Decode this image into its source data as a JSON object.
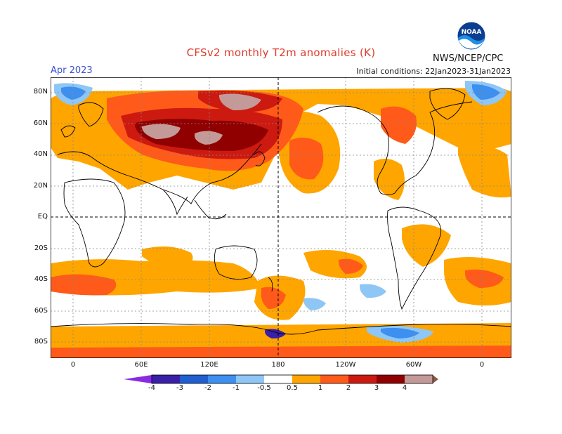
{
  "header": {
    "title": "CFSv2 monthly T2m anomalies (K)",
    "month": "Apr 2023",
    "initial_conditions": "Initial conditions: 22Jan2023-31Jan2023",
    "agency": "NWS/NCEP/CPC",
    "logo_text": "NOAA"
  },
  "lat_labels": [
    "80N",
    "60N",
    "40N",
    "20N",
    "EQ",
    "20S",
    "40S",
    "60S",
    "80S"
  ],
  "lon_labels": [
    "0",
    "60E",
    "120E",
    "180",
    "120W",
    "60W",
    "0"
  ],
  "colorbar": {
    "labels": [
      "-4",
      "-3",
      "-2",
      "-1",
      "-0.5",
      "0.5",
      "1",
      "2",
      "3",
      "4"
    ],
    "colors": {
      "below_-4": "#8a2be2",
      "-4_-3": "#3a1fa8",
      "-3_-2": "#1f5fd1",
      "-2_-1": "#3d8ff0",
      "-1_-0.5": "#8ec6f5",
      "-0.5_0.5": "#ffffff",
      "0.5_1": "#ffa500",
      "1_2": "#ff5a1a",
      "2_3": "#cc1a10",
      "3_4": "#900000",
      "4_5": "#c49a98",
      "above_5": "#8a5a48"
    }
  }
}
